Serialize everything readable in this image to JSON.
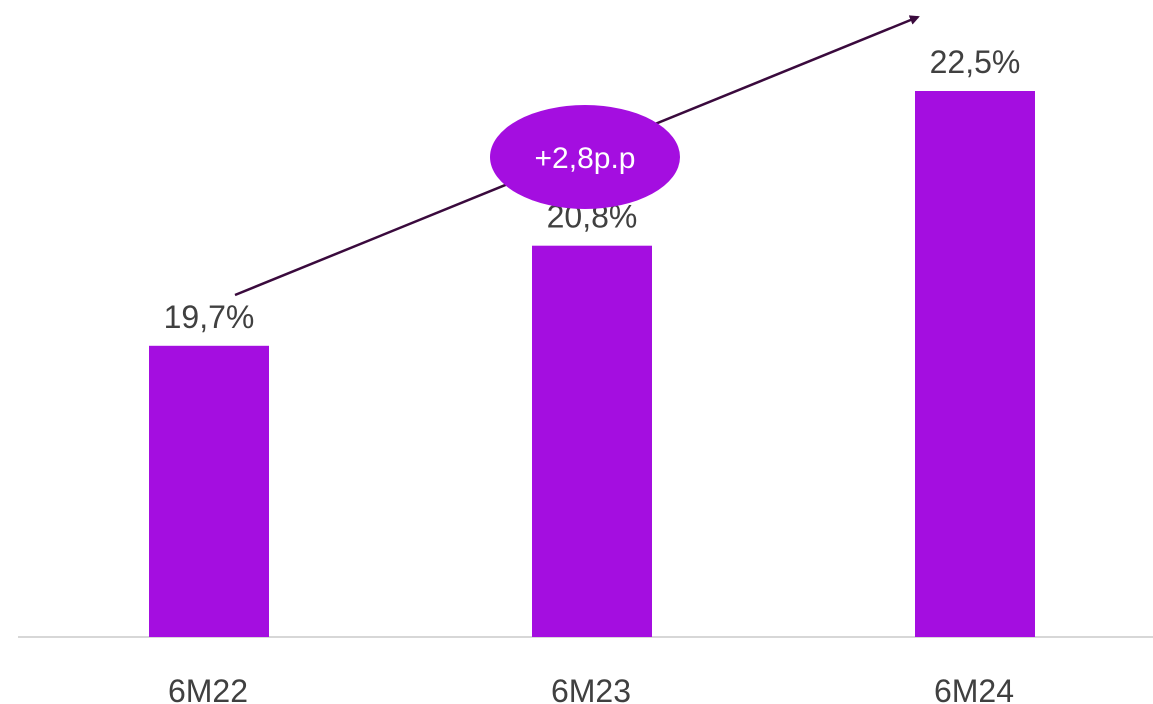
{
  "chart_data": {
    "type": "bar",
    "categories": [
      "6M22",
      "6M23",
      "6M24"
    ],
    "values": [
      19.7,
      20.8,
      22.5
    ],
    "value_labels": [
      "19,7%",
      "20,8%",
      "22,5%"
    ],
    "ylim": [
      16.5,
      23.5
    ],
    "grid": false,
    "legend": "none",
    "annotation": {
      "text": "+2,8p.p",
      "type": "trend-arrow"
    }
  },
  "colors": {
    "bar": "#a40ee0",
    "baseline": "#d7d7d7",
    "text": "#404040",
    "arrow": "#3a0a3d",
    "callout_fill": "#a40ee0",
    "callout_text": "#ffffff"
  }
}
